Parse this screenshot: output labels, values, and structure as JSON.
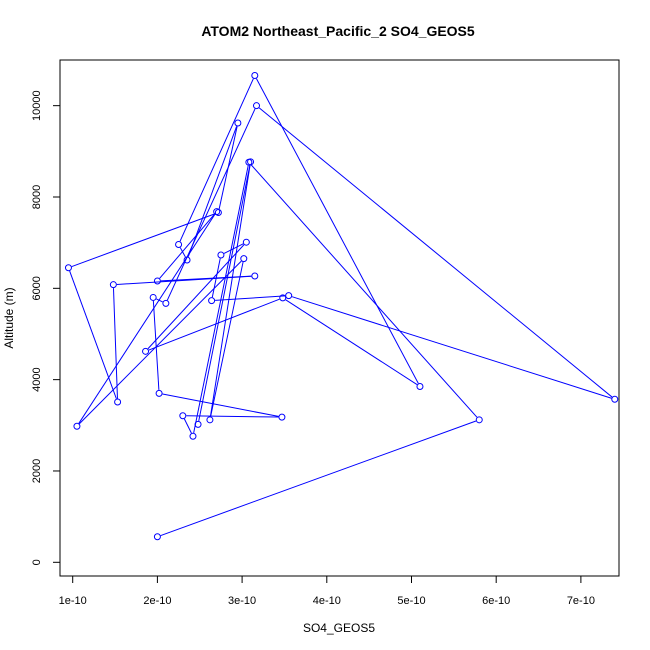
{
  "chart_data": {
    "type": "scatter",
    "title": "ATOM2 Northeast_Pacific_2 SO4_GEOS5",
    "xlabel": "SO4_GEOS5",
    "ylabel": "Altitude (m)",
    "xlim": [
      8.5e-11,
      7.45e-10
    ],
    "ylim": [
      -300,
      11000
    ],
    "x_ticks": [
      1e-10,
      2e-10,
      3e-10,
      4e-10,
      5e-10,
      6e-10,
      7e-10
    ],
    "x_tick_labels": [
      "1e-10",
      "2e-10",
      "3e-10",
      "4e-10",
      "5e-10",
      "6e-10",
      "7e-10"
    ],
    "y_ticks": [
      0,
      2000,
      4000,
      6000,
      8000,
      10000
    ],
    "y_tick_labels": [
      "0",
      "2000",
      "4000",
      "6000",
      "8000",
      "10000"
    ],
    "line_color": "#0000ff",
    "marker": "open-circle",
    "grid": false,
    "series": [
      {
        "x": [
          2e-10,
          5.8e-10,
          3.08e-10,
          2.42e-10,
          2.3e-10,
          3.47e-10,
          2.02e-10,
          1.95e-10,
          2.1e-10,
          3.17e-10,
          7.4e-10,
          3.55e-10,
          2.64e-10,
          2.75e-10,
          3.05e-10,
          1.86e-10,
          3.48e-10,
          5.1e-10,
          3.15e-10,
          2.25e-10,
          2.35e-10,
          2.95e-10,
          2.72e-10,
          9.5e-11,
          1.53e-10,
          1.48e-10,
          3.15e-10,
          2e-10,
          2.7e-10,
          1.05e-10,
          3.02e-10,
          2.62e-10,
          3.1e-10,
          2.48e-10
        ],
        "y": [
          560,
          3120,
          8760,
          2760,
          3210,
          3180,
          3700,
          5800,
          5670,
          10000,
          3570,
          5840,
          5730,
          6730,
          7010,
          4620,
          5790,
          3850,
          10660,
          6960,
          6620,
          9620,
          7660,
          6450,
          3510,
          6080,
          6270,
          6160,
          7680,
          2980,
          6650,
          3120,
          8770,
          3020
        ]
      }
    ]
  }
}
